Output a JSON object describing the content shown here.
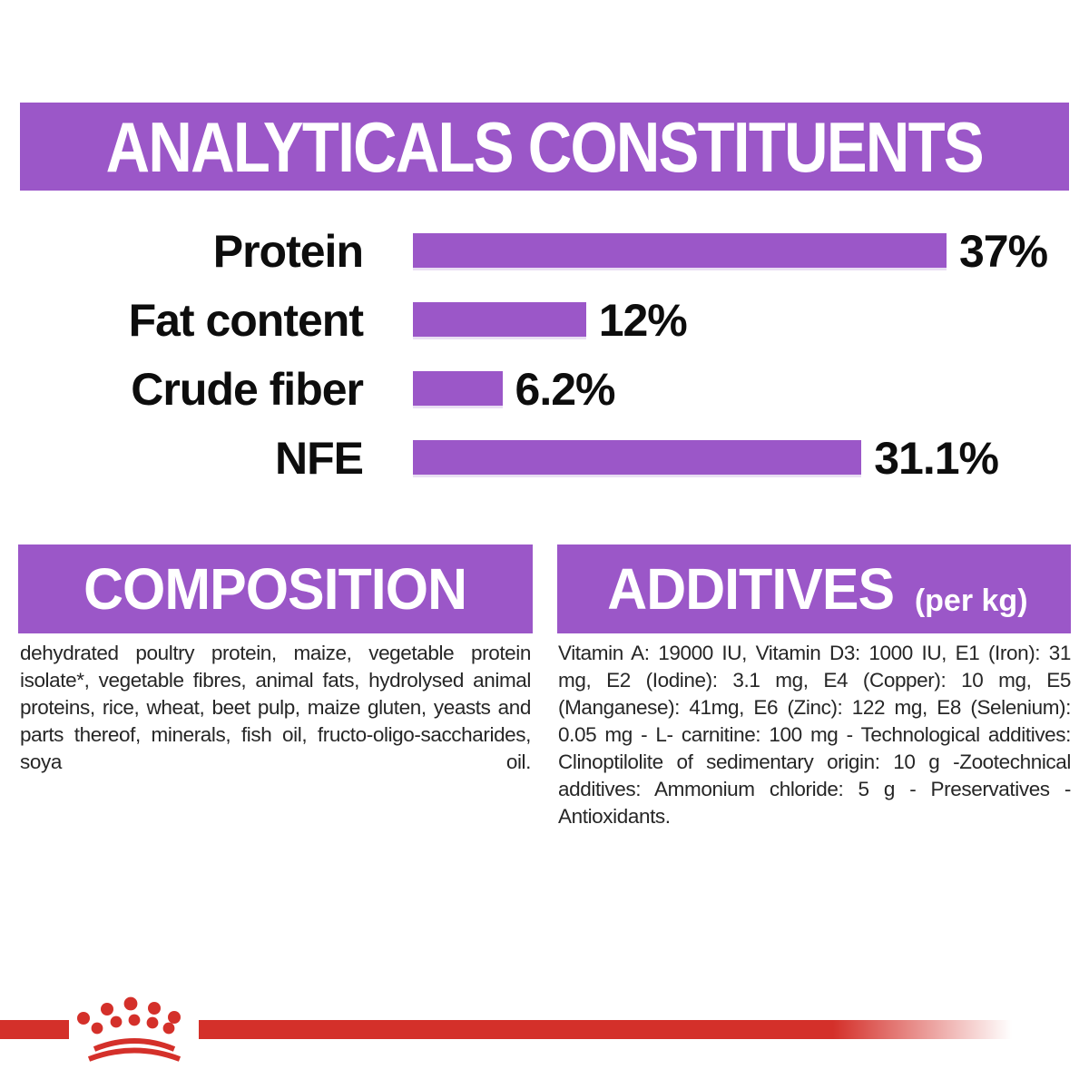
{
  "header": {
    "title": "ANALYTICALS CONSTITUENTS"
  },
  "chart_data": {
    "type": "bar",
    "orientation": "horizontal",
    "title": "ANALYTICALS CONSTITUENTS",
    "categories": [
      "Protein",
      "Fat content",
      "Crude fiber",
      "NFE"
    ],
    "values": [
      37,
      12,
      6.2,
      31.1
    ],
    "value_labels": [
      "37%",
      "12%",
      "6.2%",
      "31.1%"
    ],
    "xlim": [
      0,
      37
    ],
    "unit": "%",
    "bar_color": "#9b57c8",
    "grid": false,
    "legend": false
  },
  "composition": {
    "title": "COMPOSITION",
    "text": "dehydrated poultry protein, maize, vegetable protein isolate*, vegetable fibres, animal fats, hydrolysed animal proteins, rice, wheat, beet pulp, maize gluten, yeasts and parts thereof, minerals, fish oil, fructo-oligo-saccharides, soya oil."
  },
  "additives": {
    "title": "ADDITIVES",
    "unit": "(per kg)",
    "text": "Vitamin A: 19000 IU, Vitamin D3: 1000 IU, E1 (Iron): 31 mg, E2 (Iodine): 3.1 mg, E4 (Copper): 10 mg, E5 (Manganese): 41mg, E6 (Zinc): 122 mg, E8 (Selenium): 0.05 mg - L- carnitine: 100 mg - Technological additives: Clinoptilolite of sedimentary origin: 10 g -Zootechnical additives: Ammonium chloride: 5 g - Preservatives - Antioxidants."
  },
  "colors": {
    "purple": "#9b57c8",
    "red": "#d4302a",
    "text_black": "#0d0d0d",
    "body_text": "#262626",
    "background": "#ffffff"
  },
  "footer": {
    "logo": "royal-canin-crown"
  }
}
